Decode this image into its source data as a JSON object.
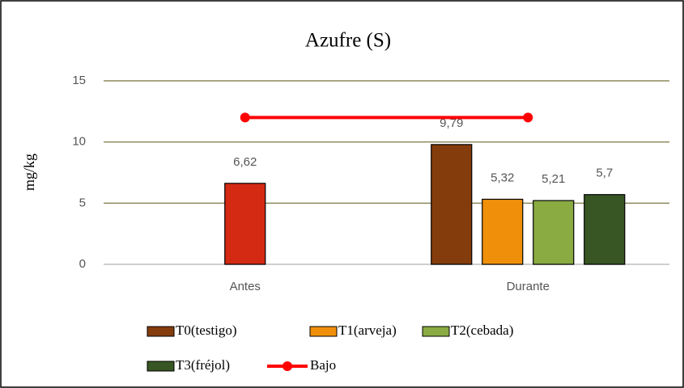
{
  "chart_data": {
    "type": "bar",
    "title": "Azufre (S)",
    "ylabel": "mg/kg",
    "categories": [
      "Antes",
      "Durante"
    ],
    "ylim": [
      0,
      15
    ],
    "yticks": [
      0,
      5,
      10,
      15
    ],
    "grid": true,
    "legend": "bottom",
    "series": [
      {
        "color": "#d42a14",
        "values": [
          6.62,
          null
        ],
        "value_labels": [
          "6,62",
          null
        ]
      },
      {
        "name": "T0(testigo)",
        "color": "#843c0c",
        "values": [
          null,
          9.79
        ],
        "value_labels": [
          null,
          "9,79"
        ]
      },
      {
        "name": "T1(arveja)",
        "color": "#f0900a",
        "values": [
          null,
          5.32
        ],
        "value_labels": [
          null,
          "5,32"
        ]
      },
      {
        "name": "T2(cebada)",
        "color": "#8aab42",
        "values": [
          null,
          5.21
        ],
        "value_labels": [
          null,
          "5,21"
        ]
      },
      {
        "name": "T3(fréjol)",
        "color": "#375623",
        "values": [
          null,
          5.7
        ],
        "value_labels": [
          null,
          "5,7"
        ]
      },
      {
        "name": "Bajo",
        "type": "line",
        "color": "#ff0000",
        "values": [
          12,
          12
        ]
      }
    ]
  }
}
